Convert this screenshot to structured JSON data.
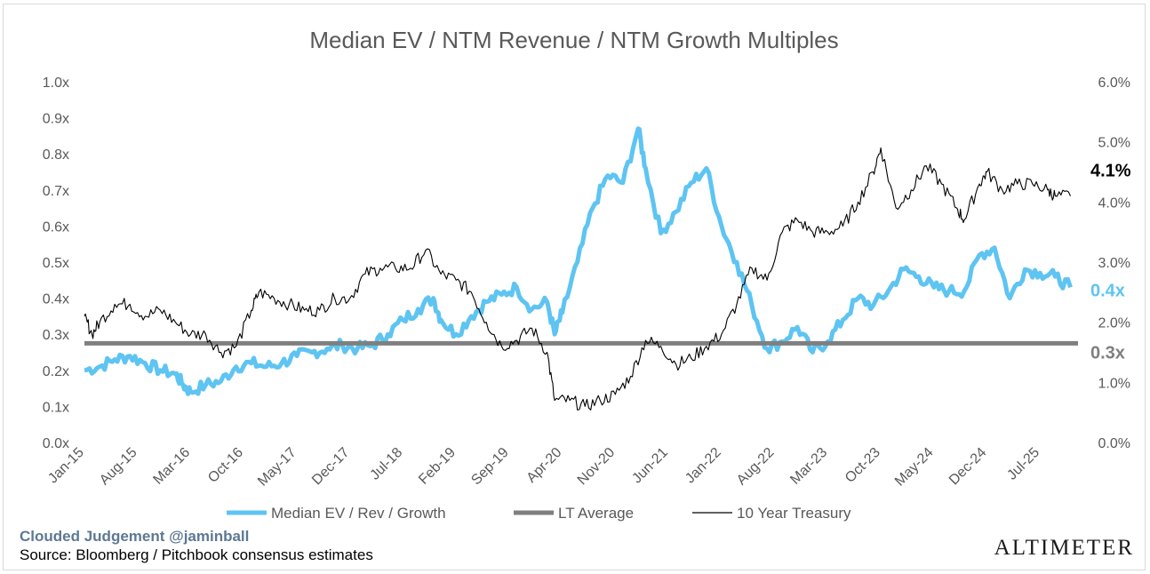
{
  "chart_data": {
    "type": "line",
    "title": "Median EV / NTM Revenue / NTM Growth Multiples",
    "x_start": "2015-01",
    "x_end": "2025-12",
    "x_ticks": [
      "Jan-15",
      "Aug-15",
      "Mar-16",
      "Oct-16",
      "May-17",
      "Dec-17",
      "Jul-18",
      "Feb-19",
      "Sep-19",
      "Apr-20",
      "Nov-20",
      "Jun-21",
      "Jan-22",
      "Aug-22",
      "Mar-23",
      "Oct-23",
      "May-24",
      "Dec-24",
      "Jul-25"
    ],
    "y_left_ticks": [
      "0.0x",
      "0.1x",
      "0.2x",
      "0.3x",
      "0.4x",
      "0.5x",
      "0.6x",
      "0.7x",
      "0.8x",
      "0.9x",
      "1.0x"
    ],
    "y_left_range": [
      0,
      1.0
    ],
    "y_right_ticks": [
      "0.0%",
      "1.0%",
      "2.0%",
      "3.0%",
      "4.0%",
      "5.0%",
      "6.0%"
    ],
    "y_right_range": [
      0,
      6.0
    ],
    "grid": false,
    "legend_position": "bottom",
    "series": [
      {
        "name": "Median EV / Rev / Growth",
        "axis": "left",
        "color": "#5ec4f2",
        "end_label": "0.4x",
        "points": [
          [
            "2015-01",
            0.2
          ],
          [
            "2015-03",
            0.21
          ],
          [
            "2015-05",
            0.23
          ],
          [
            "2015-07",
            0.24
          ],
          [
            "2015-09",
            0.22
          ],
          [
            "2015-11",
            0.2
          ],
          [
            "2016-01",
            0.19
          ],
          [
            "2016-02",
            0.16
          ],
          [
            "2016-03",
            0.14
          ],
          [
            "2016-05",
            0.16
          ],
          [
            "2016-07",
            0.17
          ],
          [
            "2016-09",
            0.21
          ],
          [
            "2016-11",
            0.22
          ],
          [
            "2017-01",
            0.21
          ],
          [
            "2017-03",
            0.22
          ],
          [
            "2017-05",
            0.24
          ],
          [
            "2017-07",
            0.25
          ],
          [
            "2017-09",
            0.26
          ],
          [
            "2017-11",
            0.27
          ],
          [
            "2018-01",
            0.26
          ],
          [
            "2018-03",
            0.27
          ],
          [
            "2018-05",
            0.3
          ],
          [
            "2018-07",
            0.34
          ],
          [
            "2018-09",
            0.37
          ],
          [
            "2018-11",
            0.4
          ],
          [
            "2018-12",
            0.34
          ],
          [
            "2019-02",
            0.3
          ],
          [
            "2019-04",
            0.35
          ],
          [
            "2019-06",
            0.39
          ],
          [
            "2019-08",
            0.41
          ],
          [
            "2019-10",
            0.43
          ],
          [
            "2019-12",
            0.37
          ],
          [
            "2020-02",
            0.39
          ],
          [
            "2020-03",
            0.3
          ],
          [
            "2020-04",
            0.36
          ],
          [
            "2020-06",
            0.5
          ],
          [
            "2020-08",
            0.65
          ],
          [
            "2020-10",
            0.74
          ],
          [
            "2020-12",
            0.72
          ],
          [
            "2021-02",
            0.87
          ],
          [
            "2021-03",
            0.76
          ],
          [
            "2021-05",
            0.58
          ],
          [
            "2021-07",
            0.64
          ],
          [
            "2021-09",
            0.72
          ],
          [
            "2021-11",
            0.76
          ],
          [
            "2022-01",
            0.6
          ],
          [
            "2022-03",
            0.5
          ],
          [
            "2022-05",
            0.38
          ],
          [
            "2022-07",
            0.26
          ],
          [
            "2022-09",
            0.28
          ],
          [
            "2022-11",
            0.32
          ],
          [
            "2023-01",
            0.25
          ],
          [
            "2023-03",
            0.28
          ],
          [
            "2023-05",
            0.34
          ],
          [
            "2023-07",
            0.4
          ],
          [
            "2023-09",
            0.38
          ],
          [
            "2023-11",
            0.42
          ],
          [
            "2024-01",
            0.48
          ],
          [
            "2024-03",
            0.46
          ],
          [
            "2024-05",
            0.43
          ],
          [
            "2024-07",
            0.42
          ],
          [
            "2024-09",
            0.42
          ],
          [
            "2024-11",
            0.52
          ],
          [
            "2025-01",
            0.54
          ],
          [
            "2025-03",
            0.4
          ],
          [
            "2025-05",
            0.48
          ],
          [
            "2025-07",
            0.47
          ],
          [
            "2025-09",
            0.46
          ],
          [
            "2025-11",
            0.43
          ]
        ]
      },
      {
        "name": "LT Average",
        "axis": "left",
        "color": "#7f7f7f",
        "end_label": "0.3x",
        "value": 0.275
      },
      {
        "name": "10 Year Treasury",
        "axis": "right",
        "color": "#000000",
        "end_label": "4.1%",
        "points": [
          [
            "2015-01",
            2.1
          ],
          [
            "2015-02",
            1.8
          ],
          [
            "2015-03",
            2.0
          ],
          [
            "2015-05",
            2.3
          ],
          [
            "2015-07",
            2.3
          ],
          [
            "2015-09",
            2.1
          ],
          [
            "2015-11",
            2.2
          ],
          [
            "2016-01",
            2.0
          ],
          [
            "2016-03",
            1.8
          ],
          [
            "2016-05",
            1.8
          ],
          [
            "2016-07",
            1.5
          ],
          [
            "2016-09",
            1.6
          ],
          [
            "2016-11",
            2.2
          ],
          [
            "2016-12",
            2.5
          ],
          [
            "2017-02",
            2.4
          ],
          [
            "2017-04",
            2.3
          ],
          [
            "2017-06",
            2.2
          ],
          [
            "2017-08",
            2.2
          ],
          [
            "2017-10",
            2.4
          ],
          [
            "2017-12",
            2.4
          ],
          [
            "2018-02",
            2.8
          ],
          [
            "2018-04",
            2.9
          ],
          [
            "2018-06",
            2.9
          ],
          [
            "2018-08",
            2.9
          ],
          [
            "2018-10",
            3.2
          ],
          [
            "2018-12",
            2.8
          ],
          [
            "2019-02",
            2.7
          ],
          [
            "2019-04",
            2.5
          ],
          [
            "2019-06",
            2.0
          ],
          [
            "2019-08",
            1.6
          ],
          [
            "2019-10",
            1.7
          ],
          [
            "2019-12",
            1.9
          ],
          [
            "2020-02",
            1.5
          ],
          [
            "2020-03",
            0.7
          ],
          [
            "2020-05",
            0.7
          ],
          [
            "2020-07",
            0.6
          ],
          [
            "2020-09",
            0.7
          ],
          [
            "2020-11",
            0.8
          ],
          [
            "2021-01",
            1.1
          ],
          [
            "2021-03",
            1.7
          ],
          [
            "2021-05",
            1.6
          ],
          [
            "2021-07",
            1.3
          ],
          [
            "2021-09",
            1.4
          ],
          [
            "2021-11",
            1.6
          ],
          [
            "2022-01",
            1.8
          ],
          [
            "2022-03",
            2.3
          ],
          [
            "2022-05",
            2.9
          ],
          [
            "2022-07",
            2.7
          ],
          [
            "2022-09",
            3.5
          ],
          [
            "2022-11",
            3.7
          ],
          [
            "2023-01",
            3.5
          ],
          [
            "2023-03",
            3.5
          ],
          [
            "2023-05",
            3.6
          ],
          [
            "2023-07",
            4.0
          ],
          [
            "2023-09",
            4.5
          ],
          [
            "2023-10",
            4.9
          ],
          [
            "2023-12",
            3.9
          ],
          [
            "2024-02",
            4.2
          ],
          [
            "2024-04",
            4.6
          ],
          [
            "2024-06",
            4.3
          ],
          [
            "2024-08",
            3.9
          ],
          [
            "2024-09",
            3.7
          ],
          [
            "2024-11",
            4.3
          ],
          [
            "2024-12",
            4.5
          ],
          [
            "2025-02",
            4.2
          ],
          [
            "2025-04",
            4.3
          ],
          [
            "2025-06",
            4.3
          ],
          [
            "2025-08",
            4.2
          ],
          [
            "2025-09",
            4.1
          ],
          [
            "2025-11",
            4.1
          ]
        ]
      }
    ]
  },
  "footer": {
    "brand": "Clouded Judgement @jaminball",
    "source": "Source: Bloomberg / Pitchbook consensus estimates",
    "logo": "ALTIMETER"
  }
}
